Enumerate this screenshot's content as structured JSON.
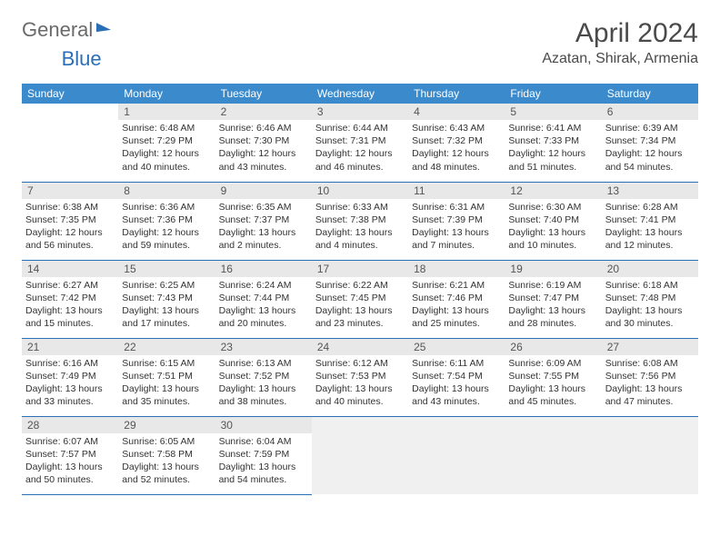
{
  "logo": {
    "part1": "General",
    "part2": "Blue"
  },
  "title": "April 2024",
  "location": "Azatan, Shirak, Armenia",
  "colors": {
    "header_bg": "#3b8bcc",
    "header_text": "#ffffff",
    "daynum_bg": "#e8e8e8",
    "rule": "#2a6fb5",
    "text": "#333333",
    "title_color": "#4a4a4a"
  },
  "weekdays": [
    "Sunday",
    "Monday",
    "Tuesday",
    "Wednesday",
    "Thursday",
    "Friday",
    "Saturday"
  ],
  "grid": [
    [
      null,
      {
        "n": "1",
        "sr": "6:48 AM",
        "ss": "7:29 PM",
        "dl": "12 hours and 40 minutes."
      },
      {
        "n": "2",
        "sr": "6:46 AM",
        "ss": "7:30 PM",
        "dl": "12 hours and 43 minutes."
      },
      {
        "n": "3",
        "sr": "6:44 AM",
        "ss": "7:31 PM",
        "dl": "12 hours and 46 minutes."
      },
      {
        "n": "4",
        "sr": "6:43 AM",
        "ss": "7:32 PM",
        "dl": "12 hours and 48 minutes."
      },
      {
        "n": "5",
        "sr": "6:41 AM",
        "ss": "7:33 PM",
        "dl": "12 hours and 51 minutes."
      },
      {
        "n": "6",
        "sr": "6:39 AM",
        "ss": "7:34 PM",
        "dl": "12 hours and 54 minutes."
      }
    ],
    [
      {
        "n": "7",
        "sr": "6:38 AM",
        "ss": "7:35 PM",
        "dl": "12 hours and 56 minutes."
      },
      {
        "n": "8",
        "sr": "6:36 AM",
        "ss": "7:36 PM",
        "dl": "12 hours and 59 minutes."
      },
      {
        "n": "9",
        "sr": "6:35 AM",
        "ss": "7:37 PM",
        "dl": "13 hours and 2 minutes."
      },
      {
        "n": "10",
        "sr": "6:33 AM",
        "ss": "7:38 PM",
        "dl": "13 hours and 4 minutes."
      },
      {
        "n": "11",
        "sr": "6:31 AM",
        "ss": "7:39 PM",
        "dl": "13 hours and 7 minutes."
      },
      {
        "n": "12",
        "sr": "6:30 AM",
        "ss": "7:40 PM",
        "dl": "13 hours and 10 minutes."
      },
      {
        "n": "13",
        "sr": "6:28 AM",
        "ss": "7:41 PM",
        "dl": "13 hours and 12 minutes."
      }
    ],
    [
      {
        "n": "14",
        "sr": "6:27 AM",
        "ss": "7:42 PM",
        "dl": "13 hours and 15 minutes."
      },
      {
        "n": "15",
        "sr": "6:25 AM",
        "ss": "7:43 PM",
        "dl": "13 hours and 17 minutes."
      },
      {
        "n": "16",
        "sr": "6:24 AM",
        "ss": "7:44 PM",
        "dl": "13 hours and 20 minutes."
      },
      {
        "n": "17",
        "sr": "6:22 AM",
        "ss": "7:45 PM",
        "dl": "13 hours and 23 minutes."
      },
      {
        "n": "18",
        "sr": "6:21 AM",
        "ss": "7:46 PM",
        "dl": "13 hours and 25 minutes."
      },
      {
        "n": "19",
        "sr": "6:19 AM",
        "ss": "7:47 PM",
        "dl": "13 hours and 28 minutes."
      },
      {
        "n": "20",
        "sr": "6:18 AM",
        "ss": "7:48 PM",
        "dl": "13 hours and 30 minutes."
      }
    ],
    [
      {
        "n": "21",
        "sr": "6:16 AM",
        "ss": "7:49 PM",
        "dl": "13 hours and 33 minutes."
      },
      {
        "n": "22",
        "sr": "6:15 AM",
        "ss": "7:51 PM",
        "dl": "13 hours and 35 minutes."
      },
      {
        "n": "23",
        "sr": "6:13 AM",
        "ss": "7:52 PM",
        "dl": "13 hours and 38 minutes."
      },
      {
        "n": "24",
        "sr": "6:12 AM",
        "ss": "7:53 PM",
        "dl": "13 hours and 40 minutes."
      },
      {
        "n": "25",
        "sr": "6:11 AM",
        "ss": "7:54 PM",
        "dl": "13 hours and 43 minutes."
      },
      {
        "n": "26",
        "sr": "6:09 AM",
        "ss": "7:55 PM",
        "dl": "13 hours and 45 minutes."
      },
      {
        "n": "27",
        "sr": "6:08 AM",
        "ss": "7:56 PM",
        "dl": "13 hours and 47 minutes."
      }
    ],
    [
      {
        "n": "28",
        "sr": "6:07 AM",
        "ss": "7:57 PM",
        "dl": "13 hours and 50 minutes."
      },
      {
        "n": "29",
        "sr": "6:05 AM",
        "ss": "7:58 PM",
        "dl": "13 hours and 52 minutes."
      },
      {
        "n": "30",
        "sr": "6:04 AM",
        "ss": "7:59 PM",
        "dl": "13 hours and 54 minutes."
      },
      null,
      null,
      null,
      null
    ]
  ],
  "labels": {
    "sunrise": "Sunrise:",
    "sunset": "Sunset:",
    "daylight": "Daylight:"
  }
}
